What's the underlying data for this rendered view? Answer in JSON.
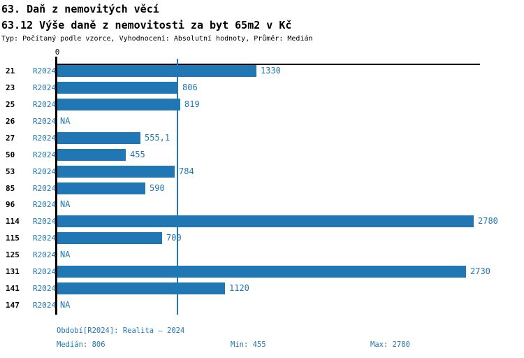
{
  "header": {
    "title1": "63. Daň z nemovitých věcí",
    "title2": "63.12 Výše daně z nemovitosti za byt 65m2 v Kč",
    "meta": "Typ: Počítaný podle vzorce, Vyhodnocení: Absolutní hodnoty, Průměr: Medián"
  },
  "chart_data": {
    "type": "bar",
    "orientation": "horizontal",
    "title": "63.12 Výše daně z nemovitosti za byt 65m2 v Kč",
    "categories": [
      "21",
      "23",
      "25",
      "26",
      "27",
      "50",
      "53",
      "85",
      "96",
      "114",
      "115",
      "125",
      "131",
      "141",
      "147"
    ],
    "series": [
      {
        "name": "R2024",
        "values": [
          1330,
          806,
          819,
          null,
          555.1,
          455,
          784,
          590,
          null,
          2780,
          700,
          null,
          2730,
          1120,
          null
        ]
      }
    ],
    "value_labels": [
      "1330",
      "806",
      "819",
      "NA",
      "555,1",
      "455",
      "784",
      "590",
      "NA",
      "2780",
      "700",
      "NA",
      "2730",
      "1120",
      "NA"
    ],
    "na_label": "NA",
    "zero_label": "0",
    "xlim": [
      0,
      2830
    ],
    "median_reference_line": 806,
    "grid": false,
    "legend_position": "none",
    "bar_color": "#2077b4",
    "text_color": "#1f77b4",
    "axis_color": "#000000"
  },
  "footer": {
    "period": "Období[R2024]: Realita – 2024",
    "median": "Medián: 806",
    "min": "Min: 455",
    "max": "Max: 2780"
  }
}
